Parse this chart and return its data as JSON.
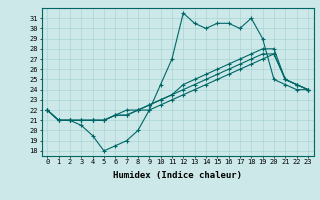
{
  "xlabel": "Humidex (Indice chaleur)",
  "background_color": "#cce8e8",
  "line_color": "#006666",
  "grid_color": "#aad4d4",
  "xlim": [
    -0.5,
    23.5
  ],
  "ylim": [
    17.5,
    32.0
  ],
  "xticks": [
    0,
    1,
    2,
    3,
    4,
    5,
    6,
    7,
    8,
    9,
    10,
    11,
    12,
    13,
    14,
    15,
    16,
    17,
    18,
    19,
    20,
    21,
    22,
    23
  ],
  "yticks": [
    18,
    19,
    20,
    21,
    22,
    23,
    24,
    25,
    26,
    27,
    28,
    29,
    30,
    31
  ],
  "series": [
    [
      22,
      21,
      21,
      20.5,
      19.5,
      18,
      18.5,
      19,
      20,
      22,
      24.5,
      27,
      31.5,
      30.5,
      30,
      30.5,
      30.5,
      30,
      31,
      29,
      25,
      24.5,
      24,
      24
    ],
    [
      22,
      21,
      21,
      21,
      21,
      21,
      21.5,
      21.5,
      22,
      22,
      22.5,
      23,
      23.5,
      24,
      24.5,
      25,
      25.5,
      26,
      26.5,
      27,
      27.5,
      25,
      24.5,
      24
    ],
    [
      22,
      21,
      21,
      21,
      21,
      21,
      21.5,
      21.5,
      22,
      22.5,
      23,
      23.5,
      24.5,
      25,
      25.5,
      26,
      26.5,
      27,
      27.5,
      28,
      28,
      25,
      24.5,
      24
    ],
    [
      22,
      21,
      21,
      21,
      21,
      21,
      21.5,
      22,
      22,
      22.5,
      23,
      23.5,
      24,
      24.5,
      25,
      25.5,
      26,
      26.5,
      27,
      27.5,
      27.5,
      25,
      24.5,
      24
    ]
  ]
}
